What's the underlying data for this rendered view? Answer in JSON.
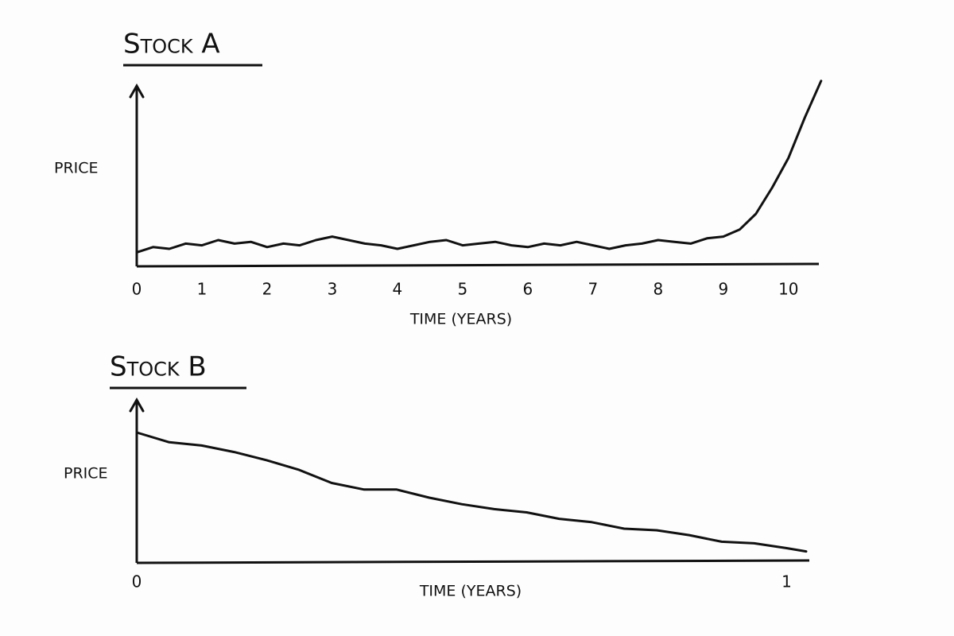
{
  "chart_data": [
    {
      "type": "line",
      "title": "Stock A",
      "y_label": "PRICE",
      "x_label": "TIME (YEARS)",
      "x": [
        0,
        0.25,
        0.5,
        0.75,
        1,
        1.25,
        1.5,
        1.75,
        2,
        2.25,
        2.5,
        2.75,
        3,
        3.25,
        3.5,
        3.75,
        4,
        4.25,
        4.5,
        4.75,
        5,
        5.25,
        5.5,
        5.75,
        6,
        6.25,
        6.5,
        6.75,
        7,
        7.25,
        7.5,
        7.75,
        8,
        8.25,
        8.5,
        8.75,
        9,
        9.25,
        9.5,
        9.75,
        10,
        10.25,
        10.5
      ],
      "series": [
        {
          "color": "#111111",
          "values": [
            8,
            11,
            10,
            13,
            12,
            15,
            13,
            14,
            11,
            13,
            12,
            15,
            17,
            15,
            13,
            12,
            10,
            12,
            14,
            15,
            12,
            13,
            14,
            12,
            11,
            13,
            12,
            14,
            12,
            10,
            12,
            13,
            15,
            14,
            13,
            16,
            17,
            21,
            30,
            45,
            62,
            85,
            106
          ]
        }
      ],
      "xlim": [
        0,
        10.6
      ],
      "xticks": [
        0,
        1,
        2,
        3,
        4,
        5,
        6,
        7,
        8,
        9,
        10
      ],
      "ylim": [
        0,
        110
      ]
    },
    {
      "type": "line",
      "title": "Stock B",
      "y_label": "PRICE",
      "x_label": "TIME (YEARS)",
      "x": [
        0,
        0.05,
        0.1,
        0.15,
        0.2,
        0.25,
        0.3,
        0.35,
        0.4,
        0.45,
        0.5,
        0.55,
        0.6,
        0.65,
        0.7,
        0.75,
        0.8,
        0.85,
        0.9,
        0.95,
        1.0,
        1.03
      ],
      "series": [
        {
          "color": "#111111",
          "values": [
            80,
            74,
            72,
            68,
            63,
            57,
            49,
            45,
            45,
            40,
            36,
            33,
            31,
            27,
            25,
            21,
            20,
            17,
            13,
            12,
            9,
            7
          ]
        }
      ],
      "xlim": [
        0,
        1.03
      ],
      "xticks": [
        0,
        1
      ],
      "ylim": [
        0,
        100
      ]
    }
  ]
}
